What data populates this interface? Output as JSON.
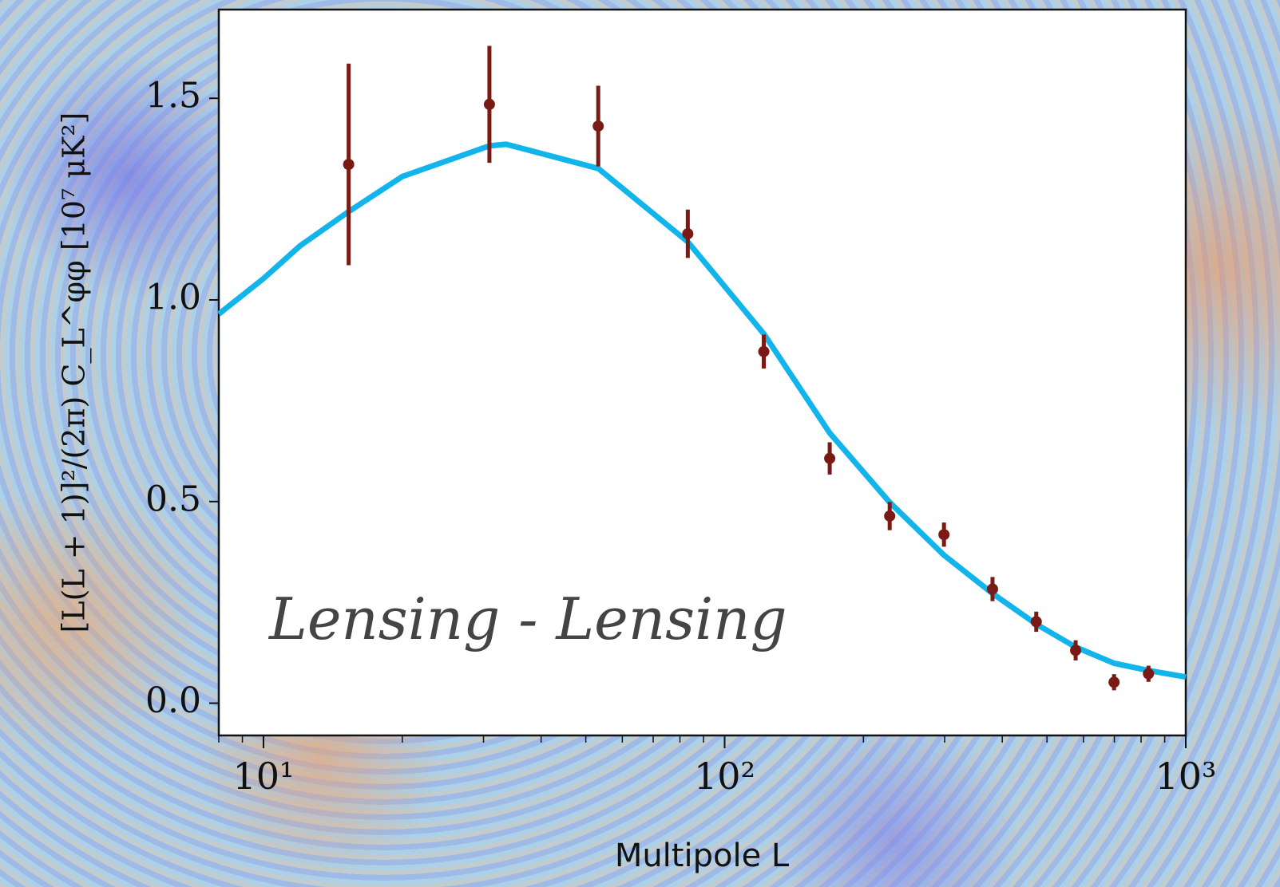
{
  "chart_data": {
    "type": "errorbar",
    "x_label": "Multipole L",
    "y_label": "[L(L + 1)]²/(2π) C_L^φφ [10⁷ μK²]",
    "annotation": "Lensing - Lensing",
    "xscale": "log",
    "xlim": [
      8,
      1000
    ],
    "ylim": [
      -0.08,
      1.72
    ],
    "xticks": [
      {
        "value": 10,
        "label": "10¹"
      },
      {
        "value": 100,
        "label": "10²"
      },
      {
        "value": 1000,
        "label": "10³"
      }
    ],
    "yticks": [
      {
        "value": 0,
        "label": "0.0"
      },
      0.5,
      {
        "value": 1,
        "label": "1.0"
      },
      1.5
    ],
    "points": {
      "color": "#7a1a14",
      "x": [
        15.3,
        30.9,
        53.2,
        83.2,
        121.6,
        169,
        228,
        299,
        381,
        474,
        577,
        699,
        830
      ],
      "y": [
        1.336,
        1.485,
        1.431,
        1.164,
        0.872,
        0.607,
        0.464,
        0.418,
        0.283,
        0.202,
        0.131,
        0.052,
        0.073
      ],
      "yerr": [
        0.25,
        0.145,
        0.1,
        0.06,
        0.042,
        0.04,
        0.035,
        0.03,
        0.03,
        0.025,
        0.025,
        0.02,
        0.02
      ]
    },
    "model": {
      "color": "#12b4ec",
      "x": [
        8,
        10,
        12,
        15.3,
        20,
        30.9,
        33.6,
        53.2,
        83.2,
        121.6,
        169,
        228,
        299,
        381,
        474,
        577,
        699,
        830,
        1000
      ],
      "y": [
        0.965,
        1.053,
        1.134,
        1.219,
        1.306,
        1.382,
        1.386,
        1.326,
        1.144,
        0.916,
        0.67,
        0.498,
        0.367,
        0.272,
        0.196,
        0.139,
        0.099,
        0.081,
        0.065
      ]
    }
  }
}
